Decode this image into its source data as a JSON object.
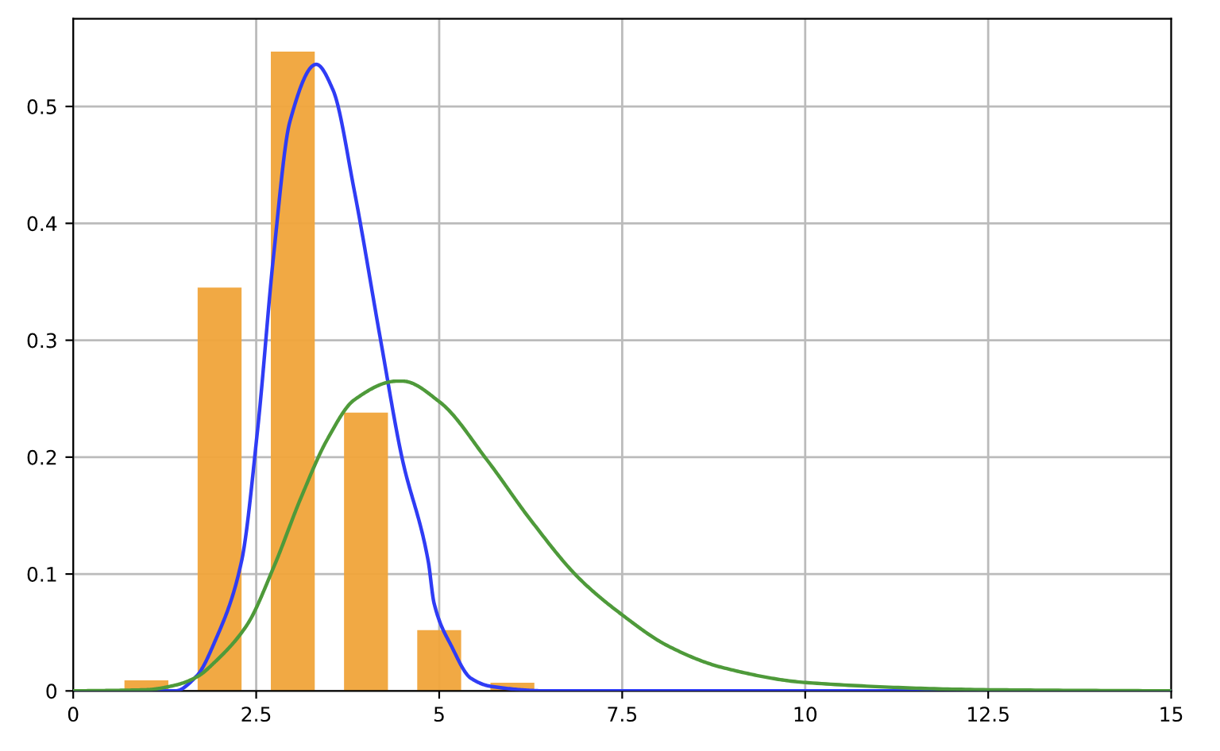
{
  "chart_data": {
    "type": "bar",
    "xlim": [
      0,
      15
    ],
    "ylim": [
      0,
      0.575
    ],
    "xticks": [
      0,
      2.5,
      5,
      7.5,
      10,
      12.5,
      15
    ],
    "yticks": [
      0,
      0.1,
      0.2,
      0.3,
      0.4,
      0.5
    ],
    "grid": true,
    "series": [
      {
        "color": "#f0a43a",
        "x": [
          1,
          2,
          3,
          4,
          5,
          6
        ],
        "values": [
          0.009,
          0.345,
          0.547,
          0.238,
          0.052,
          0.007
        ]
      },
      {
        "type": "line",
        "color": "#2f3cf5",
        "x": [
          0,
          1,
          1.39,
          1.69,
          1.94,
          2.3,
          2.52,
          2.74,
          2.96,
          3.32,
          3.55,
          3.84,
          4.2,
          4.49,
          4.85,
          4.93,
          5.17,
          5.43,
          5.7,
          6.5,
          8,
          10,
          15
        ],
        "values": [
          0,
          0,
          0,
          0.013,
          0.043,
          0.111,
          0.224,
          0.374,
          0.487,
          0.536,
          0.514,
          0.428,
          0.3,
          0.2,
          0.111,
          0.075,
          0.038,
          0.011,
          0.004,
          0,
          0,
          0,
          0
        ]
      },
      {
        "type": "line",
        "color": "#4e9a3a",
        "x": [
          0,
          1,
          1.4,
          1.69,
          1.94,
          2.38,
          2.74,
          3.11,
          3.47,
          3.84,
          4.42,
          4.5,
          5.01,
          5.66,
          6.24,
          6.9,
          7.48,
          8.14,
          8.87,
          10.04,
          12.5,
          15
        ],
        "values": [
          0,
          0.001,
          0.005,
          0.012,
          0.025,
          0.057,
          0.106,
          0.165,
          0.215,
          0.249,
          0.265,
          0.265,
          0.247,
          0.197,
          0.147,
          0.097,
          0.066,
          0.038,
          0.02,
          0.007,
          0.001,
          0
        ]
      }
    ]
  }
}
